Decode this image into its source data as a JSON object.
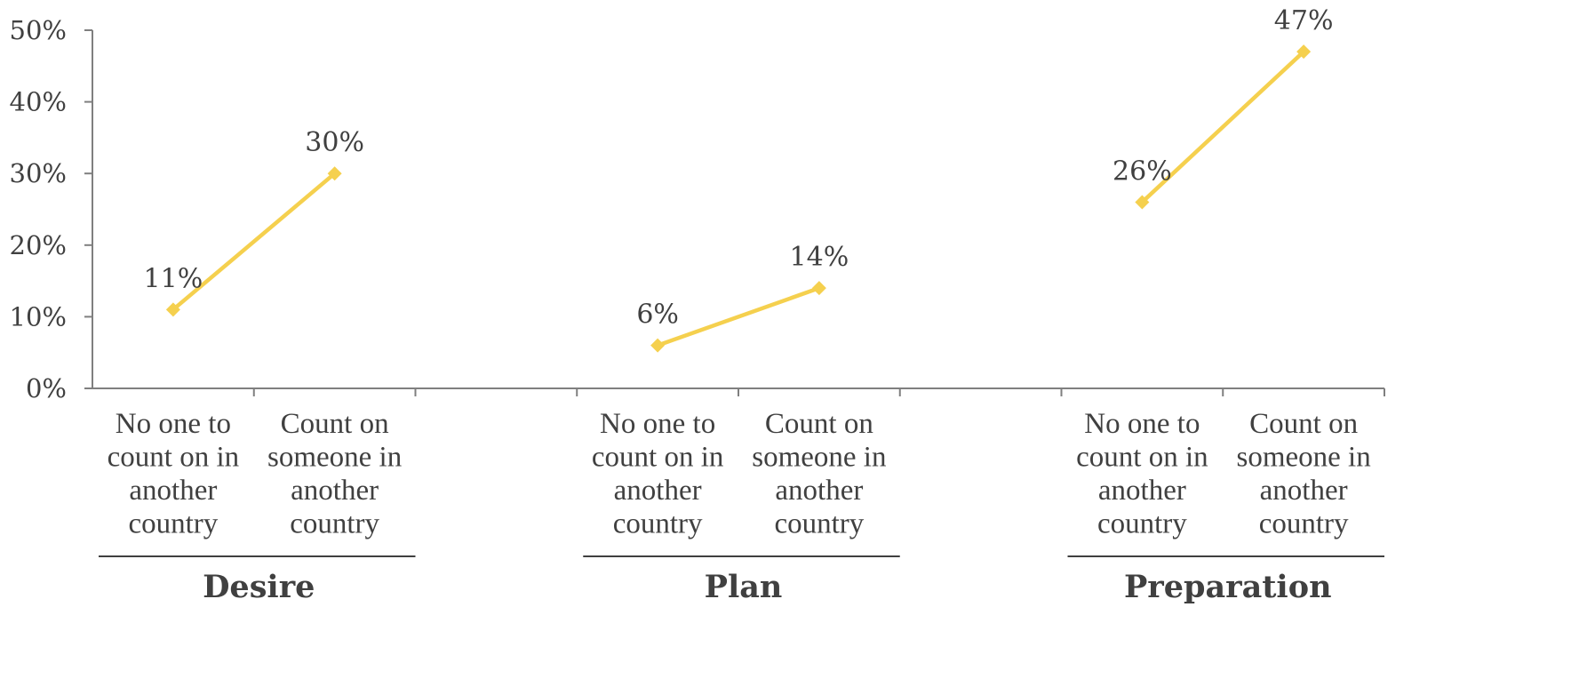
{
  "chart_data": {
    "type": "line",
    "title": "",
    "xlabel": "",
    "ylabel": "",
    "ylim": [
      0,
      50
    ],
    "y_ticks": [
      "0%",
      "10%",
      "20%",
      "30%",
      "40%",
      "50%"
    ],
    "grid": false,
    "legend": "none",
    "line_color": "#F5D04E",
    "groups": [
      {
        "name": "Desire",
        "categories": [
          [
            "No one to",
            "count on in",
            "another",
            "country"
          ],
          [
            "Count on",
            "someone in",
            "another",
            "country"
          ]
        ],
        "values": [
          11,
          30
        ],
        "labels": [
          "11%",
          "30%"
        ]
      },
      {
        "name": "Plan",
        "categories": [
          [
            "No one to",
            "count on in",
            "another",
            "country"
          ],
          [
            "Count on",
            "someone in",
            "another",
            "country"
          ]
        ],
        "values": [
          6,
          14
        ],
        "labels": [
          "6%",
          "14%"
        ]
      },
      {
        "name": "Preparation",
        "categories": [
          [
            "No one to",
            "count on in",
            "another",
            "country"
          ],
          [
            "Count on",
            "someone in",
            "another",
            "country"
          ]
        ],
        "values": [
          26,
          47
        ],
        "labels": [
          "26%",
          "47%"
        ]
      }
    ]
  }
}
